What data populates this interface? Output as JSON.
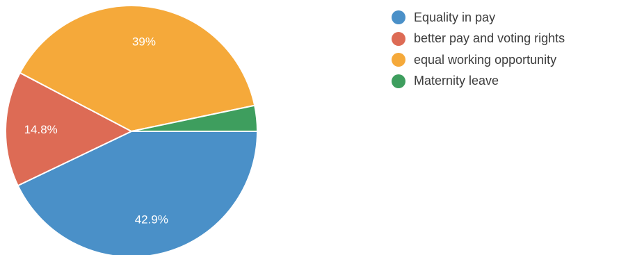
{
  "chart_data": {
    "type": "pie",
    "slices": [
      {
        "label": "Equality in pay",
        "value": 42.9,
        "value_label": "42.9%",
        "color": "#4a90c8"
      },
      {
        "label": "better pay and voting rights",
        "value": 14.8,
        "value_label": "14.8%",
        "color": "#dd6b55"
      },
      {
        "label": "equal working opportunity",
        "value": 39,
        "value_label": "39%",
        "color": "#f5a93a"
      },
      {
        "label": "Maternity leave",
        "value": 3.3,
        "value_label": "",
        "color": "#3e9e5e"
      }
    ],
    "legend_position": "right"
  }
}
